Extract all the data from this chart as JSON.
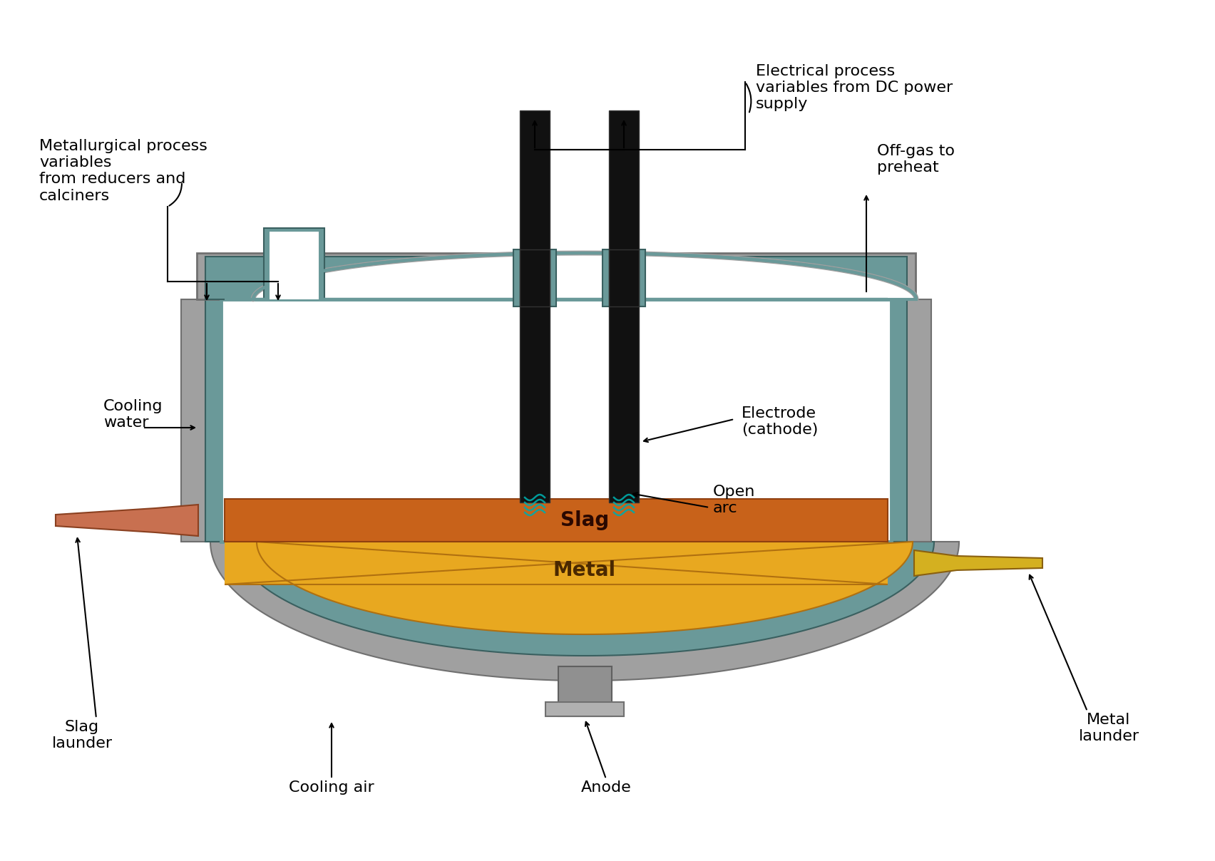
{
  "bg_color": "#ffffff",
  "wall_color": "#6a9999",
  "wall_dark": "#3a6060",
  "wall_gray": "#a0a0a0",
  "wall_gray_dark": "#707070",
  "slag_color": "#c8621a",
  "metal_color": "#e8a820",
  "electrode_color": "#111111",
  "arc_color": "#00aaaa",
  "slag_launder_color": "#c87050",
  "metal_launder_color": "#d4b020",
  "anode_color": "#909090",
  "text_color": "#000000",
  "labels": {
    "electrical": "Electrical process\nvariables from DC power\nsupply",
    "metallurgical": "Metallurgical process\nvariables\nfrom reducers and\ncalciners",
    "offgas": "Off-gas to\npreheat",
    "cooling_water": "Cooling\nwater",
    "electrode": "Electrode\n(cathode)",
    "open_arc": "Open\narc",
    "slag": "Slag",
    "metal": "Metal",
    "slag_launder": "Slag\nlaunder",
    "cooling_air": "Cooling air",
    "anode": "Anode",
    "metal_launder": "Metal\nlaunder"
  }
}
